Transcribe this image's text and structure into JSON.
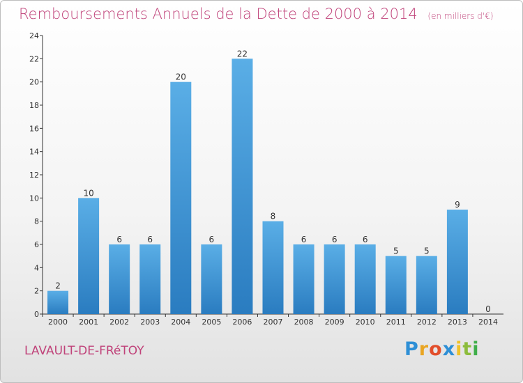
{
  "title": "Remboursements Annuels de la Dette de 2000 à 2014",
  "unit": "(en milliers d'€)",
  "town": "LAVAULT-DE-FRéTOY",
  "logo": {
    "letters": [
      "P",
      "r",
      "o",
      "x",
      "i",
      "t",
      "i"
    ]
  },
  "colors": {
    "title": "#c0437a",
    "bar_top": "#5aaee6",
    "bar_bottom": "#2a7cc0"
  },
  "chart_data": {
    "type": "bar",
    "title": "Remboursements Annuels de la Dette de 2000 à 2014",
    "xlabel": "",
    "ylabel": "",
    "categories": [
      "2000",
      "2001",
      "2002",
      "2003",
      "2004",
      "2005",
      "2006",
      "2007",
      "2008",
      "2009",
      "2010",
      "2011",
      "2012",
      "2013",
      "2014"
    ],
    "values": [
      2,
      10,
      6,
      6,
      20,
      6,
      22,
      8,
      6,
      6,
      6,
      5,
      5,
      9,
      0
    ],
    "ylim": [
      0,
      24
    ],
    "yticks": [
      0,
      2,
      4,
      6,
      8,
      10,
      12,
      14,
      16,
      18,
      20,
      22,
      24
    ],
    "grid": false,
    "legend": "none"
  }
}
